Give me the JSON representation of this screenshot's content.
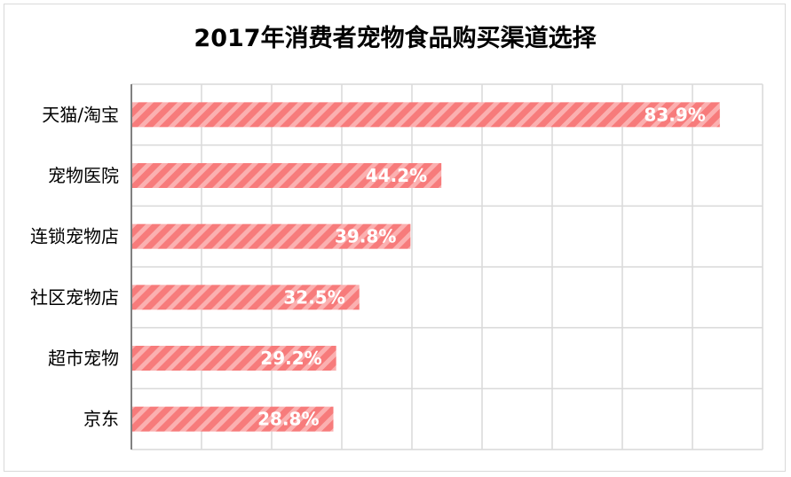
{
  "chart_data": {
    "type": "bar",
    "orientation": "horizontal",
    "title": "2017年消费者宠物食品购买渠道选择",
    "categories": [
      "天猫/淘宝",
      "宠物医院",
      "连锁宠物店",
      "社区宠物店",
      "超市宠物",
      "京东"
    ],
    "values": [
      83.9,
      44.2,
      39.8,
      32.5,
      29.2,
      28.8
    ],
    "value_labels": [
      "83.9%",
      "44.2%",
      "39.8%",
      "32.5%",
      "29.2%",
      "28.8%"
    ],
    "xlim": [
      0,
      90
    ],
    "x_gridline_step": 10,
    "grid": true,
    "x_tick_labels_visible": false,
    "legend": "none",
    "bar_fill": "diagonal-stripes",
    "colors": {
      "bar_stripe_dark": "#f77b7b",
      "bar_stripe_light": "#fbb0b0",
      "grid": "#d9d9d9",
      "axis": "#808080"
    }
  }
}
